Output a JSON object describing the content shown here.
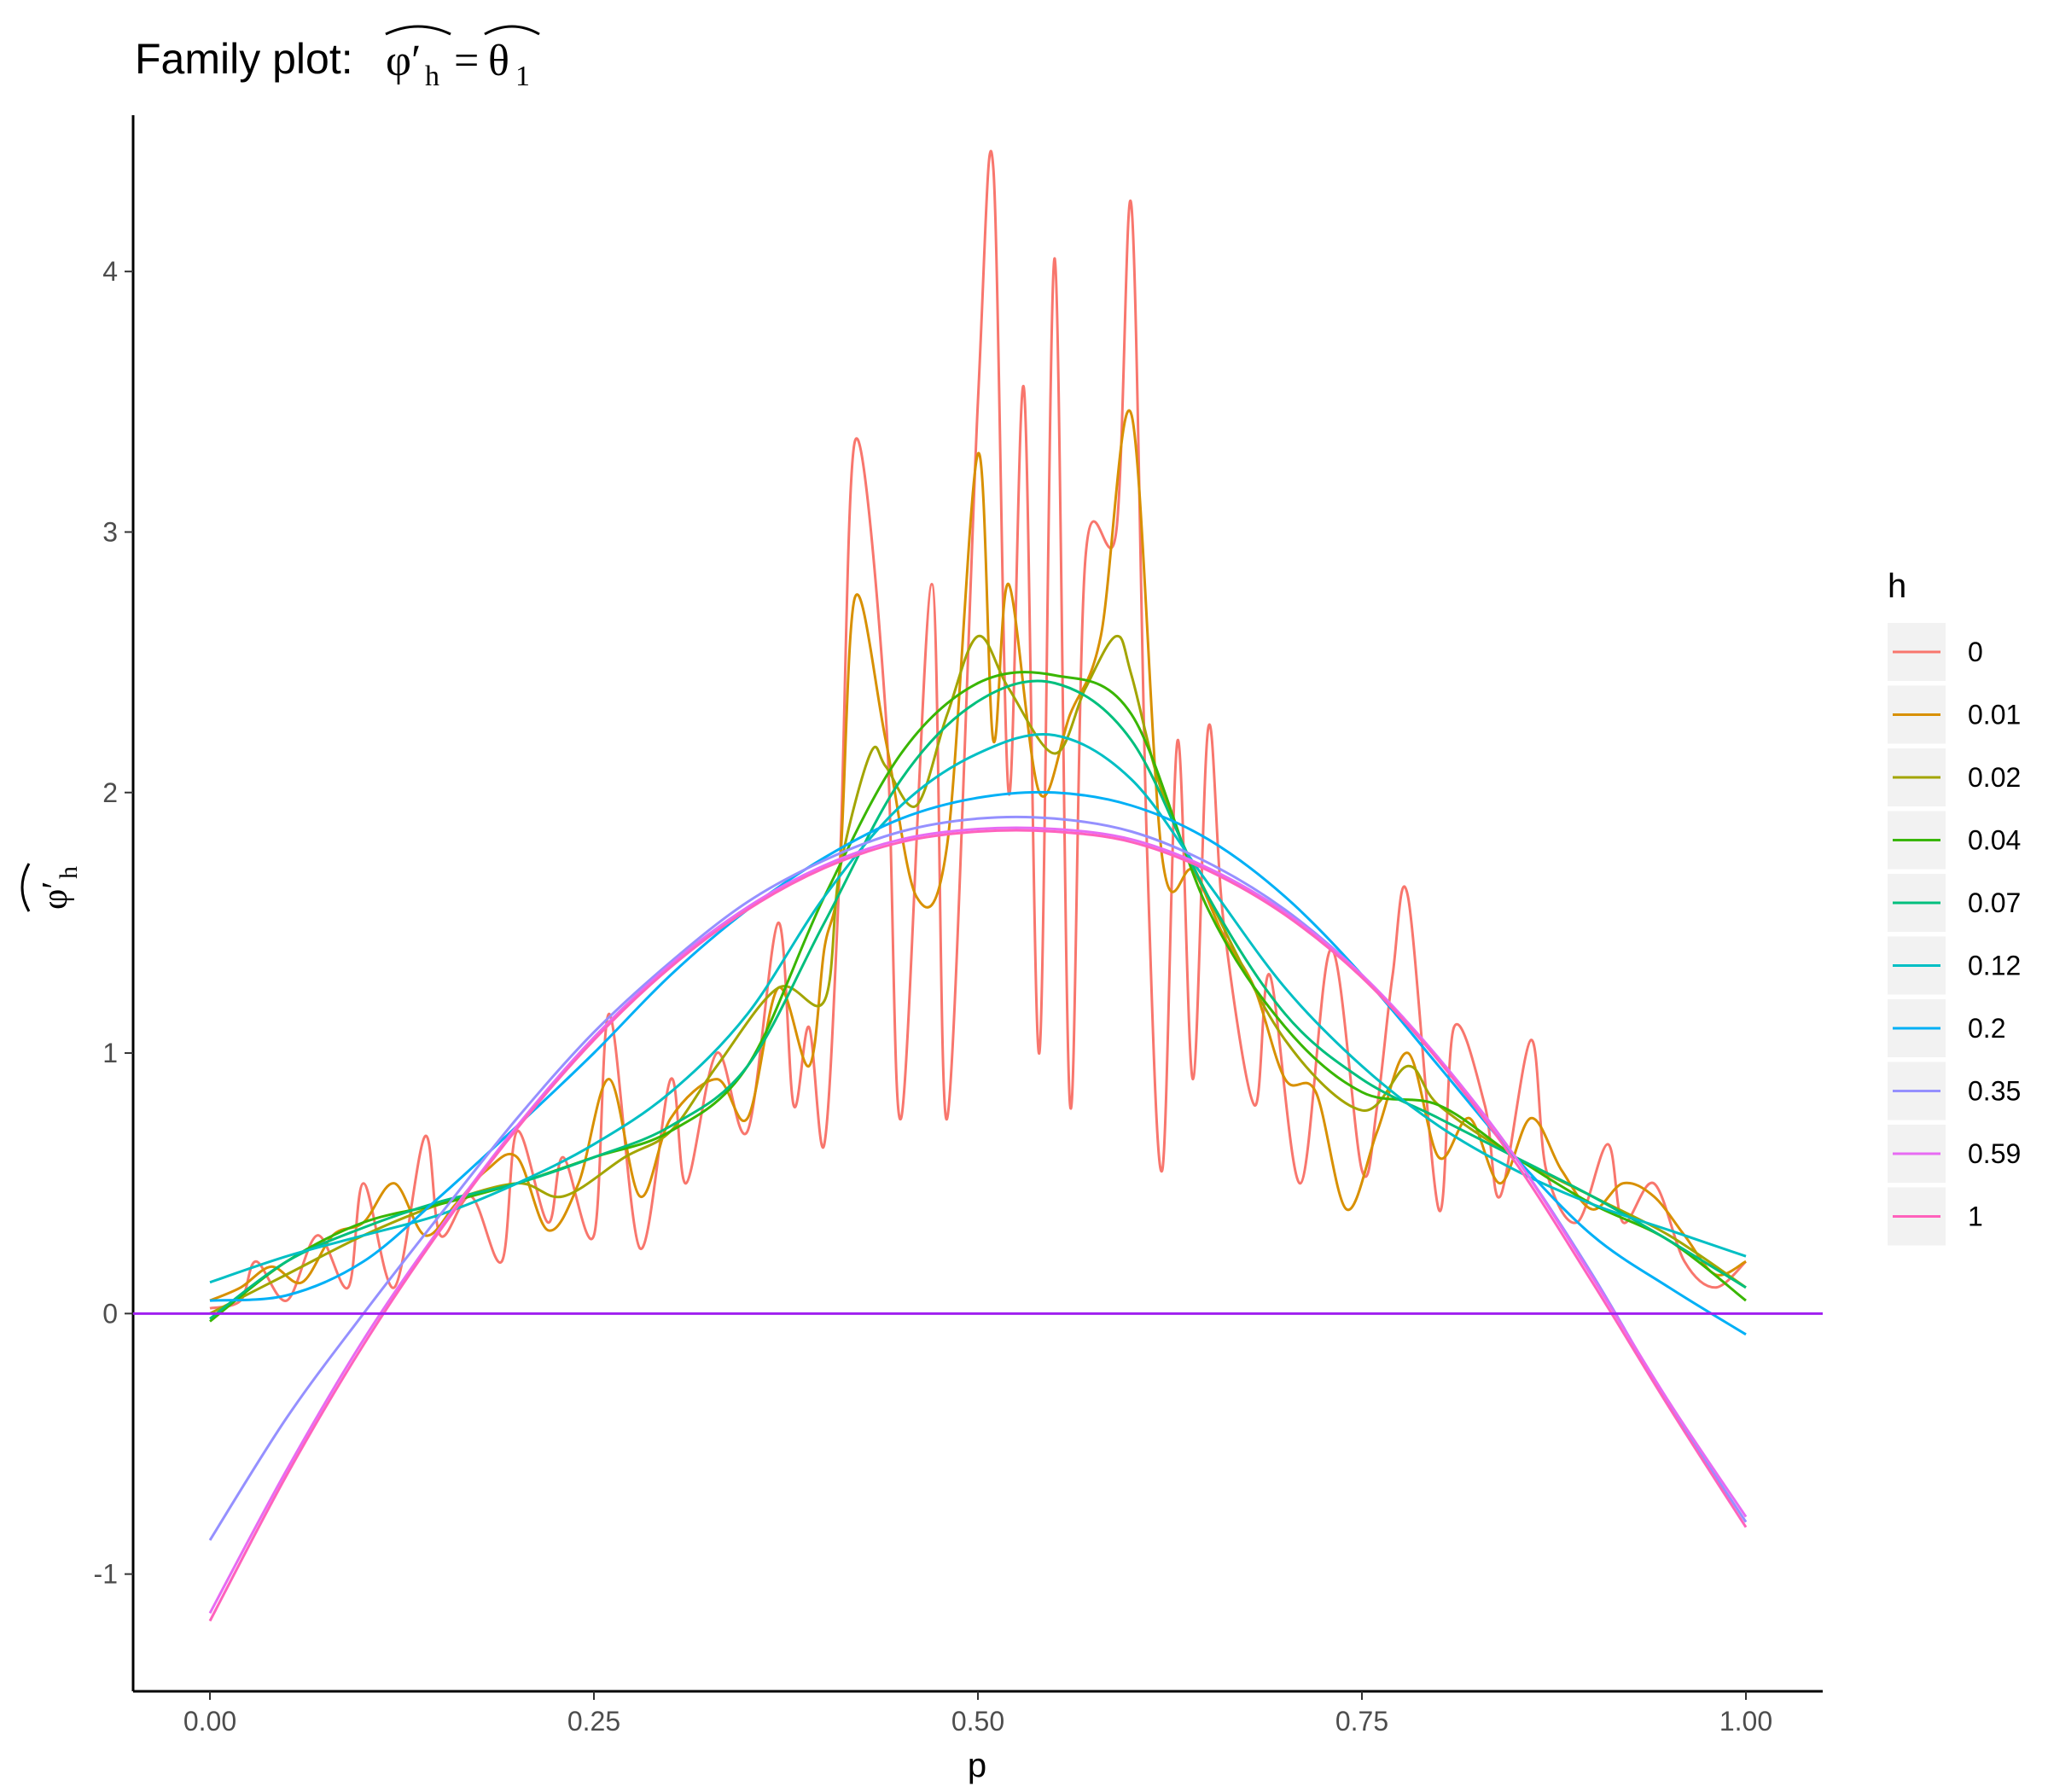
{
  "chart_data": {
    "type": "line",
    "title_text": "Family plot: ",
    "title_math": {
      "lhs": "φ′",
      "lhs_sub": "h",
      "eq": "=",
      "rhs": "θ",
      "rhs_sub": "1"
    },
    "xlabel": "p",
    "ylabel_math": {
      "sym": "φ′",
      "sub": "h"
    },
    "xlim": [
      -0.05,
      1.05
    ],
    "ylim": [
      -1.45,
      4.6
    ],
    "x_ticks": [
      0.0,
      0.25,
      0.5,
      0.75,
      1.0
    ],
    "x_tick_labels": [
      "0.00",
      "0.25",
      "0.50",
      "0.75",
      "1.00"
    ],
    "y_ticks": [
      -1,
      0,
      1,
      2,
      3,
      4
    ],
    "y_tick_labels": [
      "-1",
      "0",
      "1",
      "2",
      "3",
      "4"
    ],
    "grid": false,
    "legend": {
      "title": "h",
      "placement": "right"
    },
    "hline": {
      "y": 0,
      "color": "#A020F0"
    },
    "series": [
      {
        "name": "0",
        "color": "#F8766D",
        "x": [
          0.0,
          0.02,
          0.03,
          0.05,
          0.07,
          0.09,
          0.1,
          0.12,
          0.14,
          0.15,
          0.17,
          0.19,
          0.2,
          0.22,
          0.23,
          0.25,
          0.26,
          0.28,
          0.3,
          0.31,
          0.33,
          0.35,
          0.37,
          0.38,
          0.39,
          0.4,
          0.41,
          0.42,
          0.44,
          0.45,
          0.47,
          0.48,
          0.5,
          0.51,
          0.52,
          0.53,
          0.54,
          0.55,
          0.56,
          0.57,
          0.59,
          0.6,
          0.61,
          0.62,
          0.63,
          0.64,
          0.65,
          0.66,
          0.68,
          0.69,
          0.71,
          0.73,
          0.75,
          0.76,
          0.77,
          0.78,
          0.8,
          0.81,
          0.83,
          0.84,
          0.86,
          0.87,
          0.89,
          0.91,
          0.92,
          0.94,
          0.96,
          0.98,
          1.0
        ],
        "y": [
          0.02,
          0.05,
          0.2,
          0.05,
          0.3,
          0.1,
          0.5,
          0.1,
          0.68,
          0.3,
          0.45,
          0.2,
          0.7,
          0.35,
          0.6,
          0.3,
          1.15,
          0.25,
          0.9,
          0.5,
          1.0,
          0.7,
          1.5,
          0.8,
          1.1,
          0.65,
          1.7,
          3.35,
          2.3,
          0.75,
          2.8,
          0.75,
          3.5,
          4.4,
          2.0,
          3.55,
          1.0,
          4.05,
          0.8,
          2.9,
          3.0,
          4.25,
          1.8,
          0.55,
          2.2,
          0.9,
          2.25,
          1.5,
          0.8,
          1.3,
          0.5,
          1.4,
          0.55,
          0.8,
          1.3,
          1.6,
          0.4,
          1.1,
          0.8,
          0.45,
          1.05,
          0.55,
          0.35,
          0.65,
          0.35,
          0.5,
          0.2,
          0.1,
          0.2
        ]
      },
      {
        "name": "0.01",
        "color": "#D89000",
        "x": [
          0.0,
          0.02,
          0.04,
          0.06,
          0.08,
          0.1,
          0.12,
          0.14,
          0.16,
          0.18,
          0.2,
          0.22,
          0.24,
          0.26,
          0.28,
          0.3,
          0.33,
          0.35,
          0.37,
          0.39,
          0.4,
          0.41,
          0.42,
          0.44,
          0.46,
          0.48,
          0.5,
          0.51,
          0.52,
          0.54,
          0.56,
          0.58,
          0.6,
          0.62,
          0.64,
          0.66,
          0.68,
          0.7,
          0.72,
          0.74,
          0.76,
          0.78,
          0.8,
          0.82,
          0.84,
          0.86,
          0.88,
          0.9,
          0.92,
          0.94,
          0.96,
          0.98,
          1.0
        ],
        "y": [
          0.05,
          0.1,
          0.18,
          0.12,
          0.3,
          0.35,
          0.5,
          0.3,
          0.42,
          0.55,
          0.6,
          0.32,
          0.5,
          0.9,
          0.45,
          0.75,
          0.9,
          0.75,
          1.25,
          0.95,
          1.4,
          1.7,
          2.75,
          2.2,
          1.6,
          1.8,
          3.3,
          2.2,
          2.8,
          2.0,
          2.3,
          2.6,
          3.45,
          1.75,
          1.7,
          1.45,
          1.25,
          0.9,
          0.85,
          0.4,
          0.7,
          1.0,
          0.6,
          0.75,
          0.5,
          0.75,
          0.55,
          0.4,
          0.5,
          0.45,
          0.3,
          0.15,
          0.2
        ]
      },
      {
        "name": "0.02",
        "color": "#A3A500",
        "x": [
          0.0,
          0.05,
          0.1,
          0.15,
          0.2,
          0.23,
          0.27,
          0.3,
          0.33,
          0.37,
          0.4,
          0.41,
          0.43,
          0.44,
          0.46,
          0.48,
          0.5,
          0.52,
          0.55,
          0.57,
          0.59,
          0.6,
          0.62,
          0.65,
          0.7,
          0.75,
          0.78,
          0.8,
          0.85,
          0.9,
          0.95,
          1.0
        ],
        "y": [
          0.0,
          0.15,
          0.3,
          0.42,
          0.5,
          0.45,
          0.6,
          0.7,
          0.95,
          1.25,
          1.2,
          1.7,
          2.15,
          2.1,
          1.95,
          2.3,
          2.6,
          2.4,
          2.15,
          2.4,
          2.6,
          2.45,
          2.0,
          1.6,
          1.05,
          0.78,
          0.95,
          0.8,
          0.6,
          0.45,
          0.3,
          0.1
        ]
      },
      {
        "name": "0.04",
        "color": "#39B600",
        "x": [
          0.0,
          0.05,
          0.1,
          0.15,
          0.2,
          0.25,
          0.3,
          0.35,
          0.4,
          0.45,
          0.5,
          0.55,
          0.6,
          0.65,
          0.7,
          0.75,
          0.8,
          0.85,
          0.9,
          0.95,
          1.0
        ],
        "y": [
          -0.03,
          0.2,
          0.35,
          0.42,
          0.5,
          0.6,
          0.7,
          0.95,
          1.6,
          2.15,
          2.42,
          2.45,
          2.3,
          1.55,
          1.1,
          0.85,
          0.8,
          0.6,
          0.42,
          0.28,
          0.05
        ]
      },
      {
        "name": "0.07",
        "color": "#00BF7D",
        "x": [
          0.0,
          0.05,
          0.1,
          0.15,
          0.2,
          0.25,
          0.3,
          0.35,
          0.4,
          0.45,
          0.5,
          0.55,
          0.6,
          0.65,
          0.7,
          0.75,
          0.8,
          0.85,
          0.9,
          0.95,
          1.0
        ],
        "y": [
          -0.02,
          0.2,
          0.33,
          0.43,
          0.5,
          0.6,
          0.72,
          0.95,
          1.5,
          2.05,
          2.35,
          2.42,
          2.2,
          1.6,
          1.15,
          0.9,
          0.75,
          0.6,
          0.45,
          0.28,
          0.1
        ]
      },
      {
        "name": "0.12",
        "color": "#00BFC4",
        "x": [
          0.0,
          0.05,
          0.1,
          0.15,
          0.2,
          0.25,
          0.3,
          0.35,
          0.4,
          0.45,
          0.5,
          0.55,
          0.6,
          0.65,
          0.7,
          0.75,
          0.8,
          0.85,
          0.9,
          0.95,
          1.0
        ],
        "y": [
          0.12,
          0.22,
          0.3,
          0.38,
          0.5,
          0.65,
          0.85,
          1.15,
          1.6,
          1.95,
          2.15,
          2.22,
          2.05,
          1.65,
          1.25,
          0.95,
          0.72,
          0.55,
          0.42,
          0.32,
          0.22
        ]
      },
      {
        "name": "0.2",
        "color": "#00B0F6",
        "x": [
          0.0,
          0.05,
          0.1,
          0.15,
          0.2,
          0.25,
          0.3,
          0.35,
          0.4,
          0.45,
          0.5,
          0.55,
          0.6,
          0.65,
          0.7,
          0.75,
          0.8,
          0.85,
          0.9,
          0.95,
          1.0
        ],
        "y": [
          0.05,
          0.07,
          0.2,
          0.45,
          0.72,
          1.0,
          1.3,
          1.55,
          1.75,
          1.9,
          1.98,
          2.0,
          1.95,
          1.82,
          1.6,
          1.3,
          0.95,
          0.6,
          0.3,
          0.1,
          -0.08
        ]
      },
      {
        "name": "0.35",
        "color": "#9590FF",
        "x": [
          0.0,
          0.05,
          0.1,
          0.15,
          0.2,
          0.25,
          0.3,
          0.35,
          0.4,
          0.45,
          0.5,
          0.55,
          0.6,
          0.65,
          0.7,
          0.75,
          0.8,
          0.85,
          0.9,
          0.95,
          1.0
        ],
        "y": [
          -0.87,
          -0.4,
          0.0,
          0.38,
          0.75,
          1.08,
          1.35,
          1.58,
          1.74,
          1.85,
          1.9,
          1.9,
          1.85,
          1.73,
          1.55,
          1.3,
          0.98,
          0.6,
          0.15,
          -0.35,
          -0.8
        ]
      },
      {
        "name": "0.59",
        "color": "#E76BF3",
        "x": [
          0.0,
          0.05,
          0.1,
          0.15,
          0.2,
          0.25,
          0.3,
          0.35,
          0.4,
          0.45,
          0.5,
          0.55,
          0.6,
          0.65,
          0.7,
          0.75,
          0.8,
          0.85,
          0.9,
          0.95,
          1.0
        ],
        "y": [
          -1.15,
          -0.6,
          -0.1,
          0.33,
          0.72,
          1.06,
          1.34,
          1.56,
          1.72,
          1.82,
          1.86,
          1.86,
          1.82,
          1.71,
          1.54,
          1.3,
          0.98,
          0.6,
          0.14,
          -0.34,
          -0.78
        ]
      },
      {
        "name": "1",
        "color": "#FF62BC",
        "x": [
          0.0,
          0.05,
          0.1,
          0.15,
          0.2,
          0.25,
          0.3,
          0.35,
          0.4,
          0.45,
          0.5,
          0.55,
          0.6,
          0.65,
          0.7,
          0.75,
          0.8,
          0.85,
          0.9,
          0.95,
          1.0
        ],
        "y": [
          -1.18,
          -0.62,
          -0.12,
          0.32,
          0.71,
          1.05,
          1.33,
          1.55,
          1.71,
          1.81,
          1.85,
          1.85,
          1.81,
          1.7,
          1.53,
          1.29,
          0.97,
          0.58,
          0.12,
          -0.36,
          -0.82
        ]
      }
    ]
  }
}
